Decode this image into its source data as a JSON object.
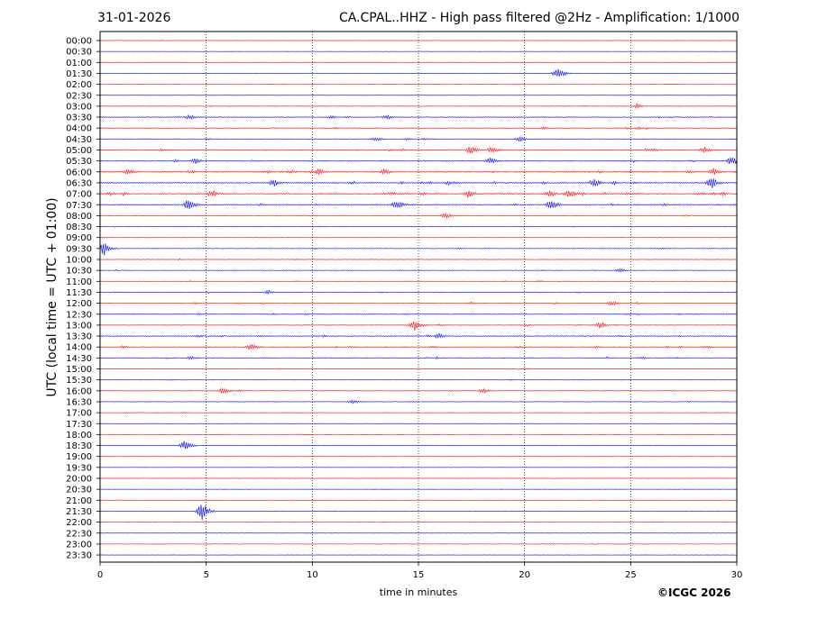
{
  "header": {
    "date": "31-01-2026",
    "title": "CA.CPAL..HHZ - High pass filtered @2Hz - Amplification: 1/1000"
  },
  "footer": {
    "copyright": "©ICGC 2026"
  },
  "colors": {
    "red_trace": "#ff0000",
    "blue_trace": "#0000ff",
    "grid": "#000000"
  },
  "chart_data": {
    "type": "line",
    "title": "CA.CPAL..HHZ - High pass filtered @2Hz - Amplification: 1/1000",
    "xlabel": "time in minutes",
    "ylabel": "UTC (local time = UTC + 01:00)",
    "xlim": [
      0,
      30
    ],
    "x_ticks": [
      0,
      5,
      10,
      15,
      20,
      25,
      30
    ],
    "grid": "vertical dotted lines at x ticks",
    "rows": [
      "00:00",
      "00:30",
      "01:00",
      "01:30",
      "02:00",
      "02:30",
      "03:00",
      "03:30",
      "04:00",
      "04:30",
      "05:00",
      "05:30",
      "06:00",
      "06:30",
      "07:00",
      "07:30",
      "08:00",
      "08:30",
      "09:00",
      "09:30",
      "10:00",
      "10:30",
      "11:00",
      "11:30",
      "12:00",
      "12:30",
      "13:00",
      "13:30",
      "14:00",
      "14:30",
      "15:00",
      "15:30",
      "16:00",
      "16:30",
      "17:00",
      "17:30",
      "18:00",
      "18:30",
      "19:00",
      "19:30",
      "20:00",
      "20:30",
      "21:00",
      "21:30",
      "22:00",
      "22:30",
      "23:00",
      "23:30"
    ],
    "row_colors": "alternating red (even rows) and blue (odd rows)",
    "activity": [
      0.05,
      0.05,
      0.05,
      0.08,
      0.04,
      0.08,
      0.3,
      0.55,
      0.55,
      0.45,
      0.6,
      0.65,
      0.85,
      0.9,
      0.95,
      0.7,
      0.3,
      0.15,
      0.15,
      0.35,
      0.25,
      0.3,
      0.25,
      0.4,
      0.5,
      0.45,
      0.55,
      0.65,
      0.6,
      0.5,
      0.2,
      0.2,
      0.35,
      0.2,
      0.15,
      0.05,
      0.05,
      0.05,
      0.05,
      0.05,
      0.05,
      0.05,
      0.05,
      0.1,
      0.15,
      0.1,
      0.05,
      0.05
    ],
    "events": [
      {
        "row": "01:30",
        "minute": 21.6,
        "amp": 1.4
      },
      {
        "row": "03:00",
        "minute": 25.3,
        "amp": 0.5
      },
      {
        "row": "03:30",
        "minute": 4.2,
        "amp": 0.6
      },
      {
        "row": "03:30",
        "minute": 13.5,
        "amp": 0.5
      },
      {
        "row": "04:30",
        "minute": 13.0,
        "amp": 0.5
      },
      {
        "row": "04:30",
        "minute": 19.8,
        "amp": 0.6
      },
      {
        "row": "05:00",
        "minute": 17.5,
        "amp": 0.9
      },
      {
        "row": "05:00",
        "minute": 18.5,
        "amp": 0.8
      },
      {
        "row": "05:00",
        "minute": 28.5,
        "amp": 0.7
      },
      {
        "row": "05:30",
        "minute": 4.5,
        "amp": 0.6
      },
      {
        "row": "05:30",
        "minute": 18.4,
        "amp": 0.8
      },
      {
        "row": "05:30",
        "minute": 29.8,
        "amp": 1.2
      },
      {
        "row": "06:00",
        "minute": 1.3,
        "amp": 0.8
      },
      {
        "row": "06:00",
        "minute": 10.3,
        "amp": 0.8
      },
      {
        "row": "06:00",
        "minute": 13.4,
        "amp": 0.6
      },
      {
        "row": "06:00",
        "minute": 28.9,
        "amp": 0.8
      },
      {
        "row": "06:30",
        "minute": 8.2,
        "amp": 0.8
      },
      {
        "row": "06:30",
        "minute": 23.3,
        "amp": 1.0
      },
      {
        "row": "06:30",
        "minute": 28.8,
        "amp": 1.4
      },
      {
        "row": "07:00",
        "minute": 5.3,
        "amp": 0.9
      },
      {
        "row": "07:00",
        "minute": 17.4,
        "amp": 0.9
      },
      {
        "row": "07:00",
        "minute": 21.2,
        "amp": 0.8
      },
      {
        "row": "07:00",
        "minute": 22.1,
        "amp": 1.0
      },
      {
        "row": "07:30",
        "minute": 4.2,
        "amp": 1.5
      },
      {
        "row": "07:30",
        "minute": 14.0,
        "amp": 1.3
      },
      {
        "row": "07:30",
        "minute": 21.3,
        "amp": 1.3
      },
      {
        "row": "08:00",
        "minute": 16.3,
        "amp": 0.6
      },
      {
        "row": "09:30",
        "minute": 0.2,
        "amp": 1.4
      },
      {
        "row": "10:30",
        "minute": 24.5,
        "amp": 0.4
      },
      {
        "row": "11:30",
        "minute": 7.9,
        "amp": 0.5
      },
      {
        "row": "12:00",
        "minute": 24.1,
        "amp": 0.6
      },
      {
        "row": "13:00",
        "minute": 14.8,
        "amp": 1.3
      },
      {
        "row": "13:00",
        "minute": 23.6,
        "amp": 0.8
      },
      {
        "row": "13:30",
        "minute": 16.0,
        "amp": 0.6
      },
      {
        "row": "14:00",
        "minute": 7.1,
        "amp": 0.9
      },
      {
        "row": "14:30",
        "minute": 4.3,
        "amp": 0.5
      },
      {
        "row": "16:00",
        "minute": 5.8,
        "amp": 0.8
      },
      {
        "row": "16:00",
        "minute": 18.1,
        "amp": 0.5
      },
      {
        "row": "16:30",
        "minute": 11.9,
        "amp": 0.5
      },
      {
        "row": "18:30",
        "minute": 4.0,
        "amp": 1.3
      },
      {
        "row": "21:30",
        "minute": 4.8,
        "amp": 2.0
      }
    ]
  }
}
